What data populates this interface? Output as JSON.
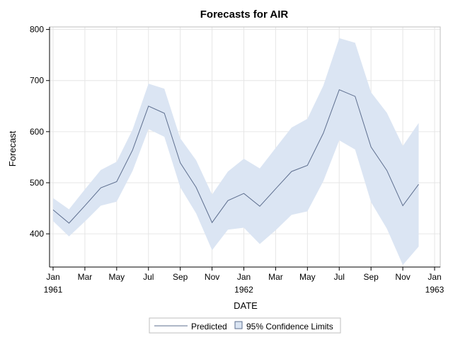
{
  "chart_data": {
    "type": "line",
    "title": "Forecasts for AIR",
    "xlabel": "DATE",
    "ylabel": "Forecast",
    "x_axis": {
      "start": "1961-01",
      "end": "1963-01",
      "ticks": [
        {
          "date": "1961-01",
          "label": "Jan",
          "year": "1961"
        },
        {
          "date": "1961-03",
          "label": "Mar",
          "year": ""
        },
        {
          "date": "1961-05",
          "label": "May",
          "year": ""
        },
        {
          "date": "1961-07",
          "label": "Jul",
          "year": ""
        },
        {
          "date": "1961-09",
          "label": "Sep",
          "year": ""
        },
        {
          "date": "1961-11",
          "label": "Nov",
          "year": ""
        },
        {
          "date": "1962-01",
          "label": "Jan",
          "year": "1962"
        },
        {
          "date": "1962-03",
          "label": "Mar",
          "year": ""
        },
        {
          "date": "1962-05",
          "label": "May",
          "year": ""
        },
        {
          "date": "1962-07",
          "label": "Jul",
          "year": ""
        },
        {
          "date": "1962-09",
          "label": "Sep",
          "year": ""
        },
        {
          "date": "1962-11",
          "label": "Nov",
          "year": ""
        },
        {
          "date": "1963-01",
          "label": "Jan",
          "year": "1963"
        }
      ]
    },
    "ylim": [
      335,
      805
    ],
    "yticks": [
      400,
      500,
      600,
      700,
      800
    ],
    "grid": true,
    "legend": {
      "placement": "bottom-center",
      "predicted_label": "Predicted",
      "band_label": "95% Confidence Limits"
    },
    "x": [
      "1961-01",
      "1961-02",
      "1961-03",
      "1961-04",
      "1961-05",
      "1961-06",
      "1961-07",
      "1961-08",
      "1961-09",
      "1961-10",
      "1961-11",
      "1961-12",
      "1962-01",
      "1962-02",
      "1962-03",
      "1962-04",
      "1962-05",
      "1962-06",
      "1962-07",
      "1962-08",
      "1962-09",
      "1962-10",
      "1962-11",
      "1962-12"
    ],
    "series": [
      {
        "name": "Predicted",
        "values": [
          447,
          421,
          455,
          490,
          502,
          564,
          650,
          636,
          539,
          491,
          422,
          465,
          479,
          454,
          488,
          522,
          534,
          597,
          682,
          669,
          570,
          524,
          455,
          497
        ]
      },
      {
        "name": "95% Confidence Limits",
        "lower": [
          425,
          395,
          424,
          455,
          463,
          523,
          605,
          590,
          491,
          440,
          368,
          408,
          412,
          380,
          407,
          437,
          444,
          503,
          583,
          565,
          462,
          410,
          339,
          375
        ],
        "upper": [
          470,
          448,
          487,
          525,
          541,
          604,
          694,
          684,
          587,
          544,
          477,
          522,
          547,
          528,
          568,
          608,
          625,
          690,
          783,
          774,
          677,
          637,
          572,
          617
        ]
      }
    ],
    "colors": {
      "line": "#5e6f8f",
      "band": "#dbe5f3",
      "grid": "#e6e6e6",
      "frame": "#bfbfbf"
    }
  }
}
